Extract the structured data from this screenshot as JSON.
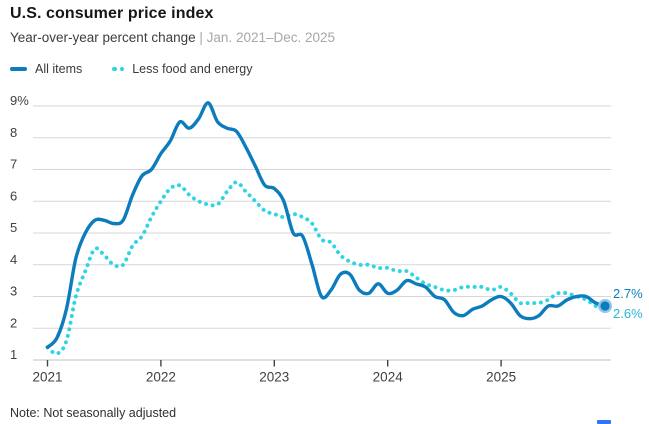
{
  "header": {
    "title": "U.S. consumer price index",
    "subtitle": "Year-over-year percent change",
    "separator": "|",
    "date_range": "Jan. 2021–Dec. 2025"
  },
  "note": "Note: Not seasonally adjusted",
  "colors": {
    "all_items": "#0d7cbd",
    "all_items_dot_halo": "#8ec9e8",
    "less_food_and_energy": "#2fd4e4",
    "core_end_label": "#27b9d2",
    "grid": "#d7d7d7",
    "axis": "#c2c2c2",
    "tick_mark": "#444444",
    "axis_text": "#3f3f3f",
    "logo_blue": "#2e77f2"
  },
  "chart_data": {
    "type": "line",
    "title": "U.S. consumer price index",
    "subtitle": "Year-over-year percent change | Jan. 2021–Dec. 2025",
    "x_range": "Jan. 2021–Dec. 2025",
    "x_frequency": "monthly",
    "x_tick_labels": [
      "2021",
      "2022",
      "2023",
      "2024",
      "2025"
    ],
    "y_tick_labels": [
      "9%",
      "8",
      "7",
      "6",
      "5",
      "4",
      "3",
      "2",
      "1"
    ],
    "ylim": [
      1,
      9
    ],
    "grid": "horizontal",
    "legend_position": "top-left",
    "series": [
      {
        "name": "All items",
        "style": "solid",
        "color": "#0d7cbd",
        "end_label": "2.7%",
        "values": [
          1.4,
          1.7,
          2.6,
          4.2,
          5.0,
          5.4,
          5.4,
          5.3,
          5.4,
          6.2,
          6.8,
          7.0,
          7.5,
          7.9,
          8.5,
          8.3,
          8.6,
          9.1,
          8.5,
          8.3,
          8.2,
          7.7,
          7.1,
          6.5,
          6.4,
          6.0,
          5.0,
          4.9,
          4.0,
          3.0,
          3.2,
          3.7,
          3.7,
          3.2,
          3.1,
          3.4,
          3.1,
          3.2,
          3.5,
          3.4,
          3.3,
          3.0,
          2.9,
          2.5,
          2.4,
          2.6,
          2.7,
          2.9,
          3.0,
          2.8,
          2.4,
          2.3,
          2.4,
          2.7,
          2.7,
          2.9,
          3.0,
          3.0,
          2.8,
          2.7
        ]
      },
      {
        "name": "Less food and energy",
        "style": "dotted",
        "color": "#2fd4e4",
        "end_label": "2.6%",
        "values": [
          1.4,
          1.2,
          1.6,
          3.0,
          3.8,
          4.5,
          4.3,
          4.0,
          4.0,
          4.6,
          4.9,
          5.5,
          6.0,
          6.4,
          6.5,
          6.2,
          6.0,
          5.9,
          5.9,
          6.3,
          6.6,
          6.3,
          6.0,
          5.7,
          5.6,
          5.5,
          5.6,
          5.5,
          5.3,
          4.8,
          4.7,
          4.3,
          4.1,
          4.0,
          4.0,
          3.9,
          3.9,
          3.8,
          3.8,
          3.6,
          3.4,
          3.3,
          3.2,
          3.2,
          3.3,
          3.3,
          3.3,
          3.2,
          3.3,
          3.1,
          2.8,
          2.8,
          2.8,
          2.9,
          3.1,
          3.1,
          3.0,
          2.9,
          2.7,
          2.6
        ]
      }
    ]
  }
}
